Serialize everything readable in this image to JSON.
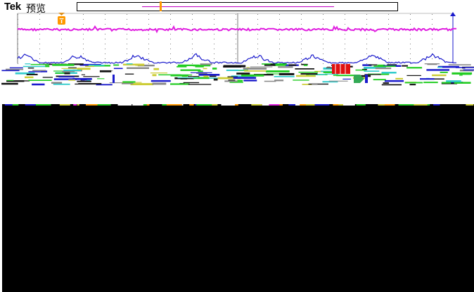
{
  "header": {
    "brand": "Tek",
    "mode": "预览"
  },
  "colors": {
    "channel_magenta": "#e020e0",
    "channel_blue": "#1a1acc",
    "trigger_orange": "#ff9900",
    "record_window": "#c000c0",
    "grid": "#7a7a7a",
    "green_trace": "#22cc22",
    "red_marker": "#e01010"
  },
  "icons": {
    "trigger_position": "trigger-position-icon",
    "trigger_level": "trigger-level-arrow-icon",
    "channel_marker": "channel-marker-icon"
  },
  "trigger_position_label": "T"
}
